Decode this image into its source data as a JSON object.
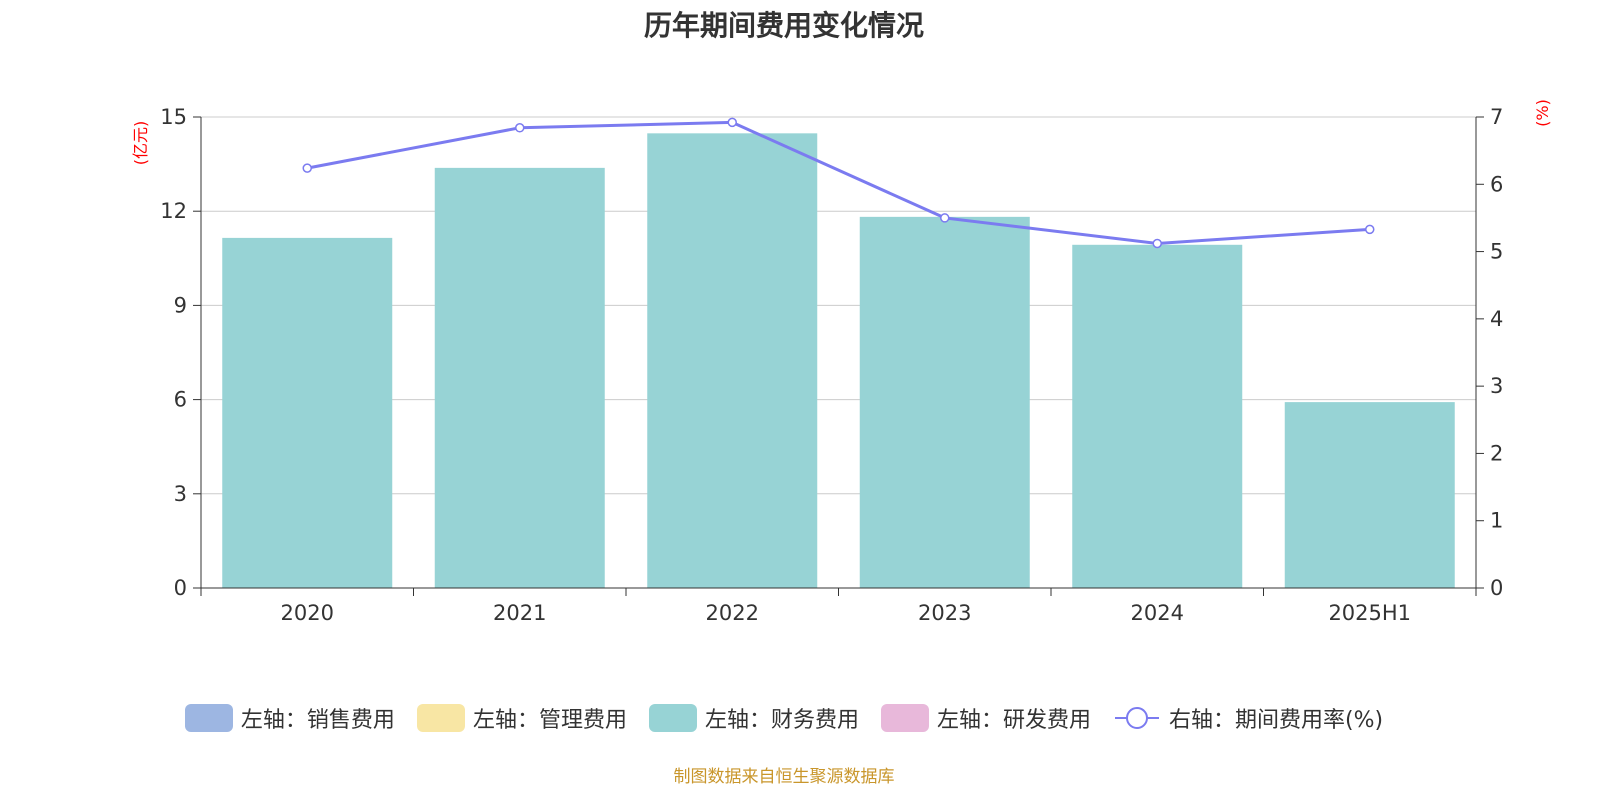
{
  "chart_data": {
    "type": "bar+line",
    "title": "历年期间费用变化情况",
    "categories": [
      "2020",
      "2021",
      "2022",
      "2023",
      "2024",
      "2025H1"
    ],
    "left_axis": {
      "unit": "(亿元)",
      "ylim": [
        0,
        15
      ],
      "ticks": [
        "0",
        "3",
        "6",
        "9",
        "12",
        "15"
      ],
      "tick_values": [
        0,
        3,
        6,
        9,
        12,
        15
      ]
    },
    "right_axis": {
      "unit": "(%)",
      "ylim": [
        0,
        7
      ],
      "ticks": [
        "0",
        "1",
        "2",
        "3",
        "4",
        "5",
        "6",
        "7"
      ],
      "tick_values": [
        0,
        1,
        2,
        3,
        4,
        5,
        6,
        7
      ]
    },
    "series": [
      {
        "name": "左轴：销售费用",
        "type": "bar",
        "axis": "left",
        "color": "#9DB6E2",
        "values": [
          null,
          null,
          null,
          null,
          null,
          null
        ]
      },
      {
        "name": "左轴：管理费用",
        "type": "bar",
        "axis": "left",
        "color": "#F8E6A4",
        "values": [
          null,
          null,
          null,
          null,
          null,
          null
        ]
      },
      {
        "name": "左轴：财务费用",
        "type": "bar",
        "axis": "left",
        "color": "#97D3D5",
        "values": [
          11.15,
          13.38,
          14.48,
          11.82,
          10.93,
          5.92
        ]
      },
      {
        "name": "左轴：研发费用",
        "type": "bar",
        "axis": "left",
        "color": "#E8B8DA",
        "values": [
          null,
          null,
          null,
          null,
          null,
          null
        ]
      },
      {
        "name": "右轴：期间费用率(%)",
        "type": "line",
        "axis": "right",
        "color": "#7B7BF0",
        "values": [
          6.24,
          6.84,
          6.92,
          5.5,
          5.12,
          5.33
        ]
      }
    ],
    "grid": true,
    "legend_position": "bottom"
  },
  "colors": {
    "unit_label": "#FF0000",
    "source_note": "#C9962B",
    "grid": "#CCCCCC",
    "axis": "#333333"
  },
  "footer": {
    "source": "制图数据来自恒生聚源数据库"
  }
}
